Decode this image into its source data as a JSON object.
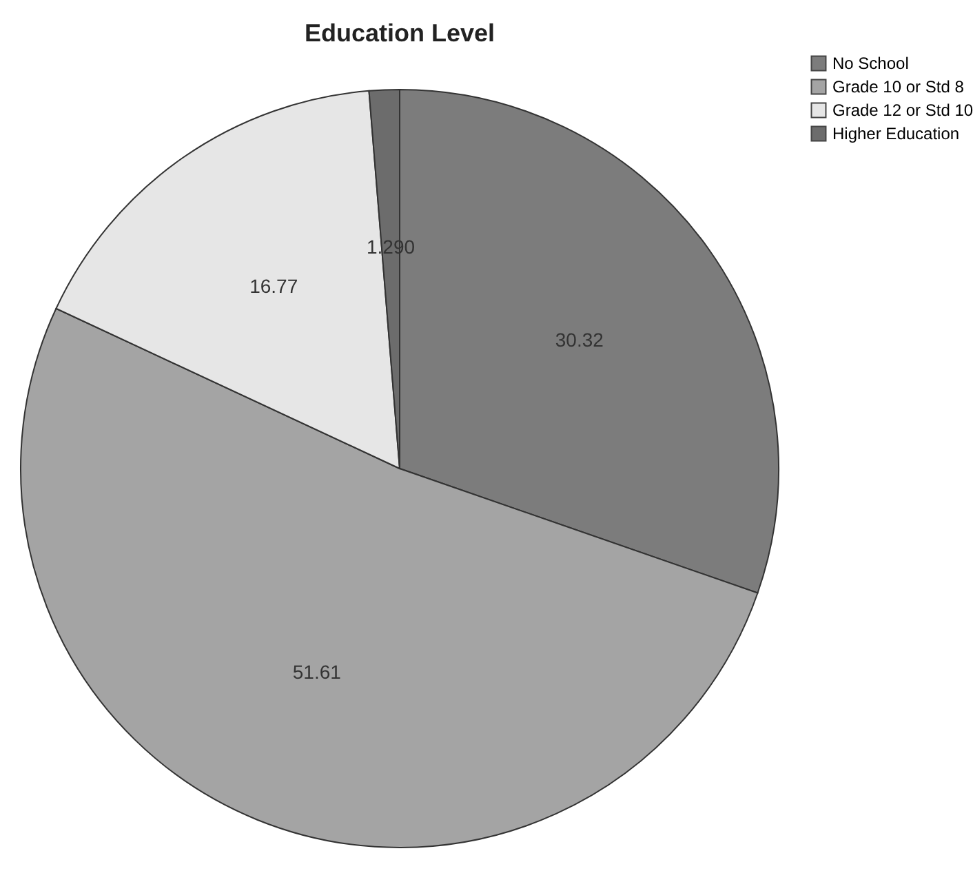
{
  "chart_data": {
    "type": "pie",
    "title": "Education Level",
    "categories": [
      "No School",
      "Grade 10 or Std 8",
      "Grade 12 or Std 10",
      "Higher Education"
    ],
    "values": [
      30.32,
      51.61,
      16.77,
      1.29
    ],
    "value_labels": [
      "30.32",
      "51.61",
      "16.77",
      "1.290"
    ],
    "colors": [
      "#7c7c7c",
      "#a4a4a4",
      "#e6e6e6",
      "#6c6c6c"
    ],
    "legend": "top right"
  }
}
